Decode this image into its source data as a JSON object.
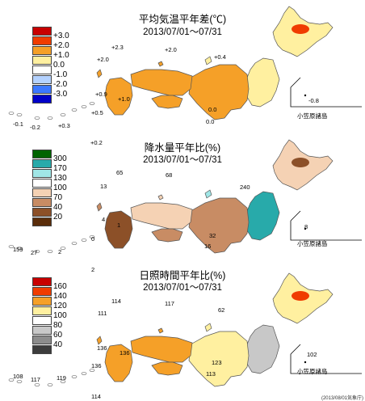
{
  "panels": [
    {
      "id": "temp",
      "title": "平均気温平年差(℃)",
      "period": "2013/07/01～07/31",
      "legend": [
        {
          "label": "+3.0",
          "color": "#c80000"
        },
        {
          "label": "+2.0",
          "color": "#f03c00"
        },
        {
          "label": "+1.0",
          "color": "#f5a028"
        },
        {
          "label": "0.0",
          "color": "#fff0a0"
        },
        {
          "label": "-1.0",
          "color": "#ffffff"
        },
        {
          "label": "-2.0",
          "color": "#b4d2ff"
        },
        {
          "label": "-3.0",
          "color": "#3c78ff"
        },
        {
          "label": "",
          "color": "#0000c8"
        }
      ],
      "values": [
        "+2.3",
        "+2.0",
        "+2.0",
        "+0.4",
        "-0.8",
        "+0.9",
        "+1.0",
        "0.0",
        "0.0",
        "-0.1",
        "-0.2",
        "+0.3",
        "+0.5",
        "+0.2"
      ],
      "ogasawara": "小笠原諸島"
    },
    {
      "id": "precip",
      "title": "降水量平年比(%)",
      "period": "2013/07/01～07/31",
      "legend": [
        {
          "label": "300",
          "color": "#006400"
        },
        {
          "label": "170",
          "color": "#28aaaa"
        },
        {
          "label": "130",
          "color": "#a0e6e6"
        },
        {
          "label": "100",
          "color": "#ffffff"
        },
        {
          "label": "70",
          "color": "#f5d2b4"
        },
        {
          "label": "40",
          "color": "#c88c64"
        },
        {
          "label": "20",
          "color": "#8c5028"
        },
        {
          "label": "",
          "color": "#5a2d0a"
        }
      ],
      "values": [
        "65",
        "68",
        "240",
        "13",
        "4",
        "1",
        "32",
        "16",
        "8",
        "159",
        "27",
        "2",
        "0",
        "2"
      ],
      "ogasawara": "小笠原諸島"
    },
    {
      "id": "sun",
      "title": "日照時間平年比(%)",
      "period": "2013/07/01～07/31",
      "legend": [
        {
          "label": "160",
          "color": "#c80000"
        },
        {
          "label": "140",
          "color": "#f03c00"
        },
        {
          "label": "120",
          "color": "#f5a028"
        },
        {
          "label": "100",
          "color": "#fff0a0"
        },
        {
          "label": "80",
          "color": "#ffffff"
        },
        {
          "label": "60",
          "color": "#c8c8c8"
        },
        {
          "label": "40",
          "color": "#8c8c8c"
        },
        {
          "label": "",
          "color": "#3c3c3c"
        }
      ],
      "values": [
        "114",
        "117",
        "111",
        "62",
        "136",
        "136",
        "123",
        "102",
        "113",
        "108",
        "117",
        "119",
        "136",
        "114"
      ],
      "ogasawara": "小笠原諸島"
    }
  ],
  "credit": "(2013/08/01気象庁)"
}
